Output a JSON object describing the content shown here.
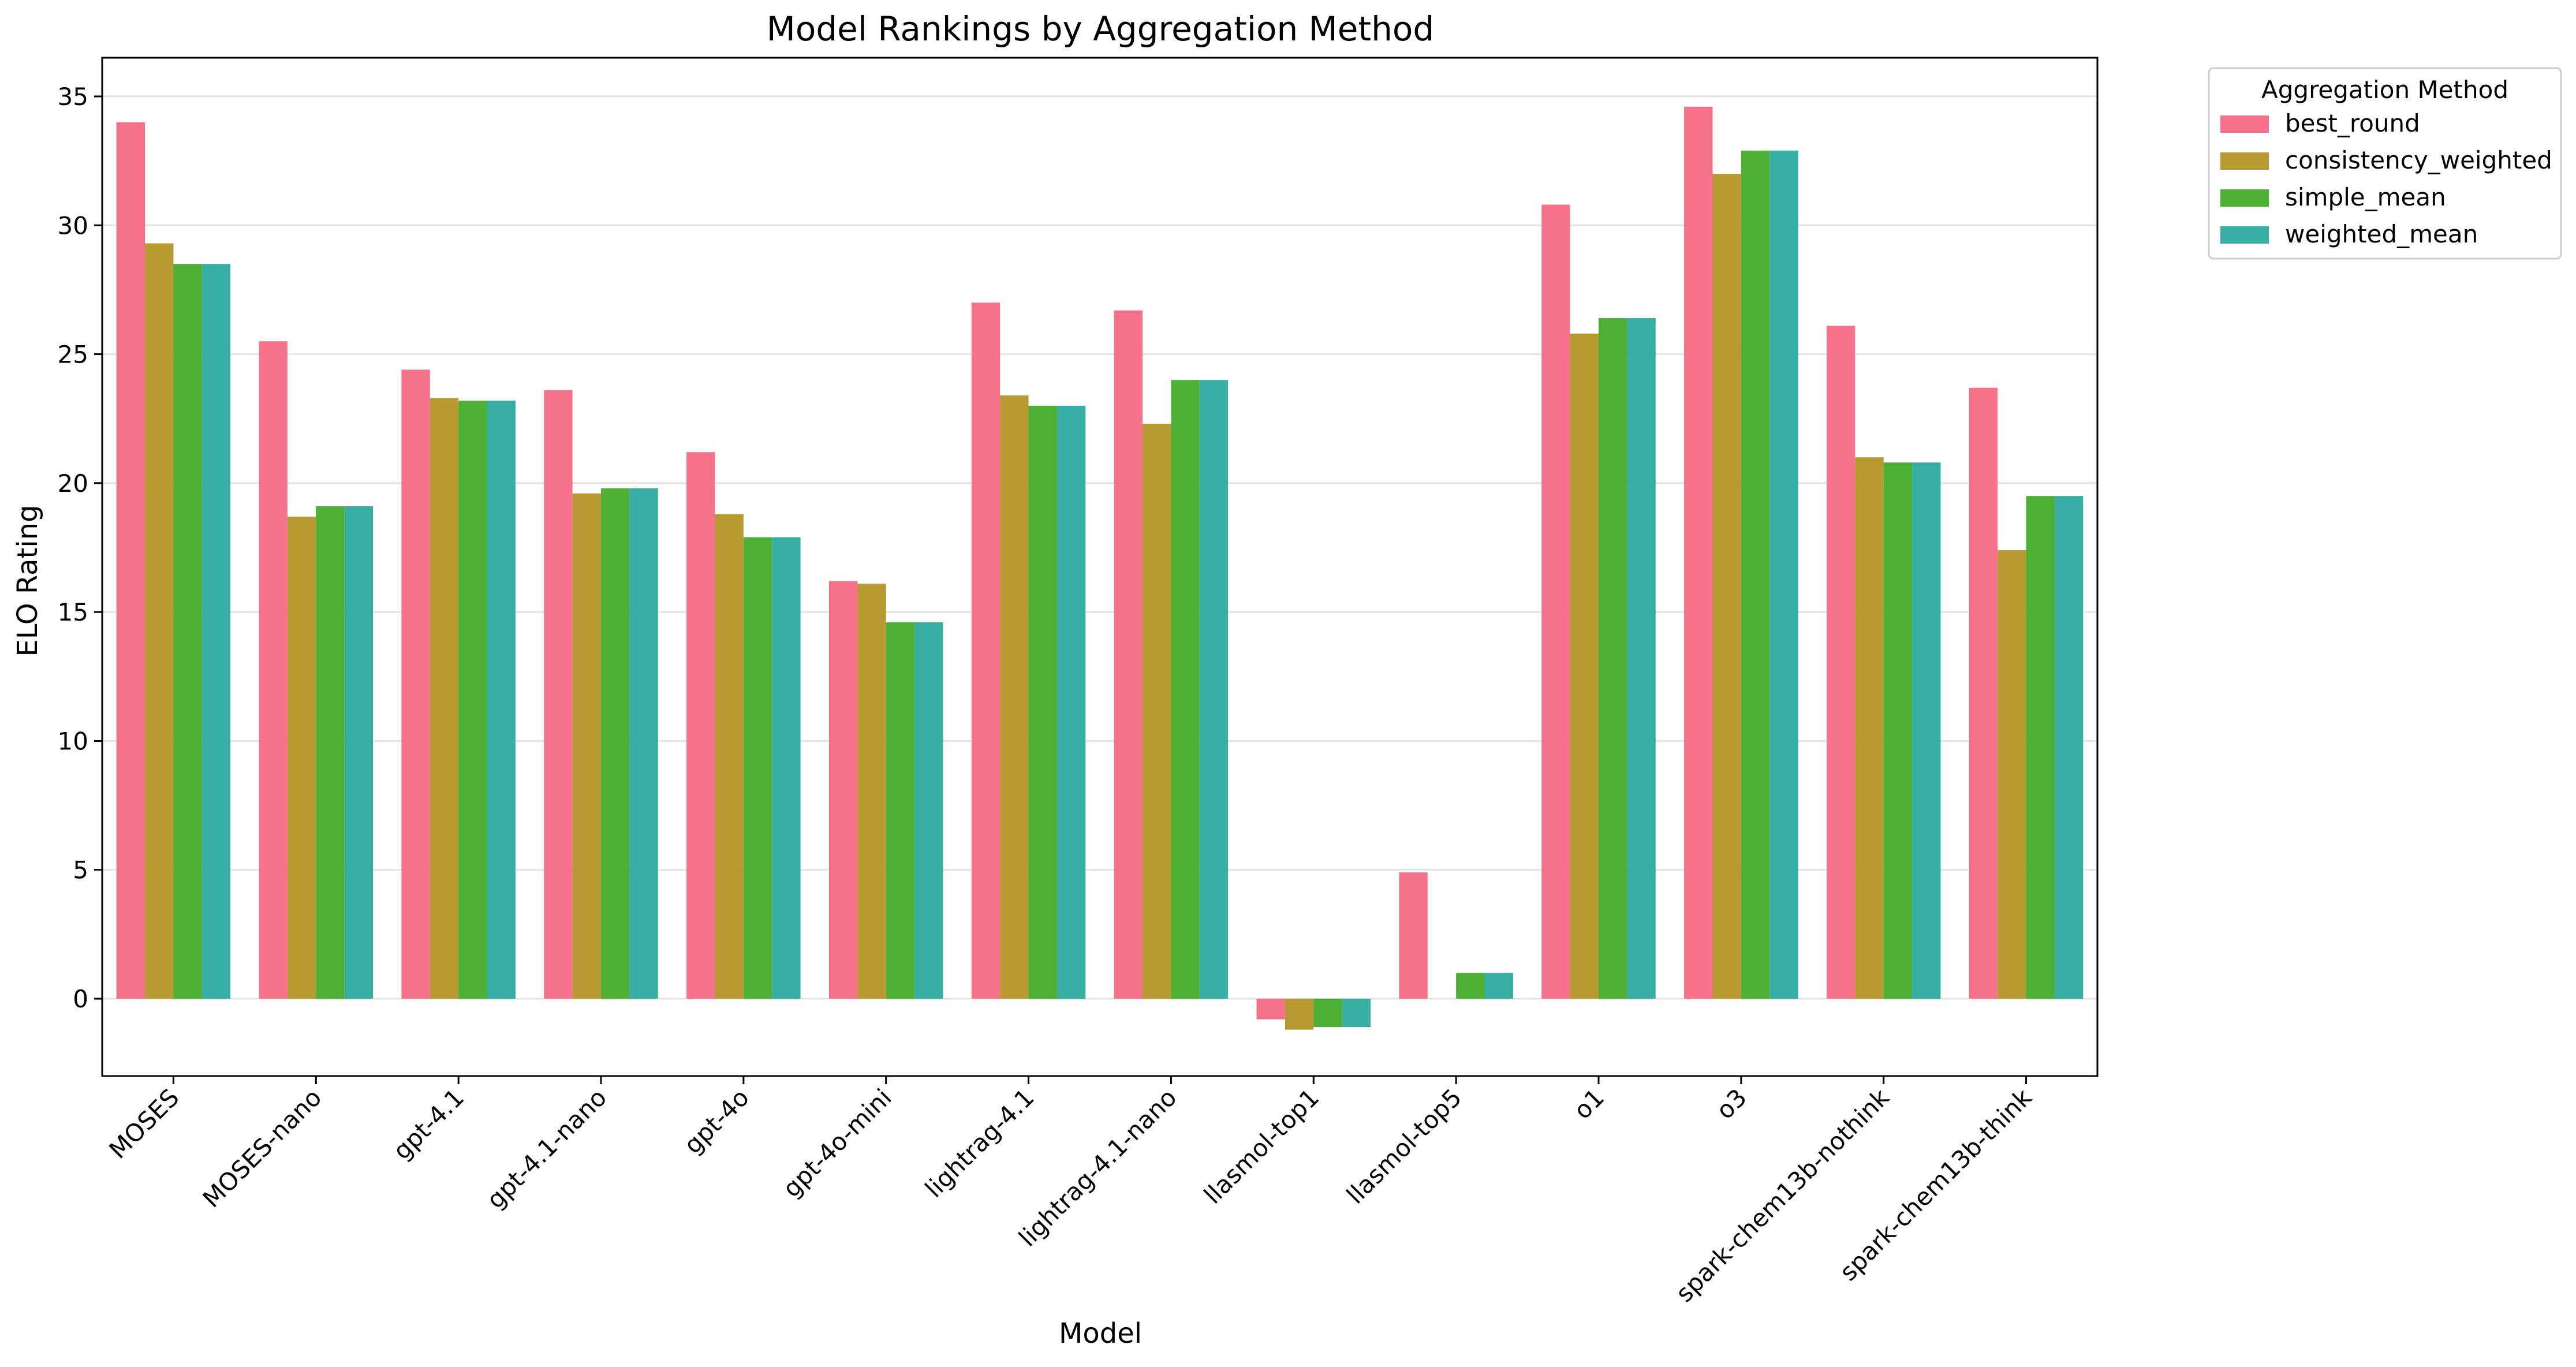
{
  "chart_data": {
    "type": "bar",
    "title": "Model Rankings by Aggregation Method",
    "xlabel": "Model",
    "ylabel": "ELO Rating",
    "ylim": [
      -3.0,
      36.5
    ],
    "yticks": [
      0,
      5,
      10,
      15,
      20,
      25,
      30,
      35
    ],
    "grid": "y",
    "legend": {
      "title": "Aggregation Method",
      "placement": "outside-top-right"
    },
    "categories": [
      "MOSES",
      "MOSES-nano",
      "gpt-4.1",
      "gpt-4.1-nano",
      "gpt-4o",
      "gpt-4o-mini",
      "lightrag-4.1",
      "lightrag-4.1-nano",
      "llasmol-top1",
      "llasmol-top5",
      "o1",
      "o3",
      "spark-chem13b-nothink",
      "spark-chem13b-think"
    ],
    "series": [
      {
        "name": "best_round",
        "color": "#f5728a",
        "values": [
          34.0,
          25.5,
          24.4,
          23.6,
          21.2,
          16.2,
          27.0,
          26.7,
          -0.8,
          4.9,
          30.8,
          34.6,
          26.1,
          23.7
        ]
      },
      {
        "name": "consistency_weighted",
        "color": "#b89a33",
        "values": [
          29.3,
          18.7,
          23.3,
          19.6,
          18.8,
          16.1,
          23.4,
          22.3,
          -1.2,
          0.0,
          25.8,
          32.0,
          21.0,
          17.4
        ]
      },
      {
        "name": "simple_mean",
        "color": "#4daf34",
        "values": [
          28.5,
          19.1,
          23.2,
          19.8,
          17.9,
          14.6,
          23.0,
          24.0,
          -1.1,
          1.0,
          26.4,
          32.9,
          20.8,
          19.5
        ]
      },
      {
        "name": "weighted_mean",
        "color": "#37aea3",
        "values": [
          28.5,
          19.1,
          23.2,
          19.8,
          17.9,
          14.6,
          23.0,
          24.0,
          -1.1,
          1.0,
          26.4,
          32.9,
          20.8,
          19.5
        ]
      }
    ]
  }
}
